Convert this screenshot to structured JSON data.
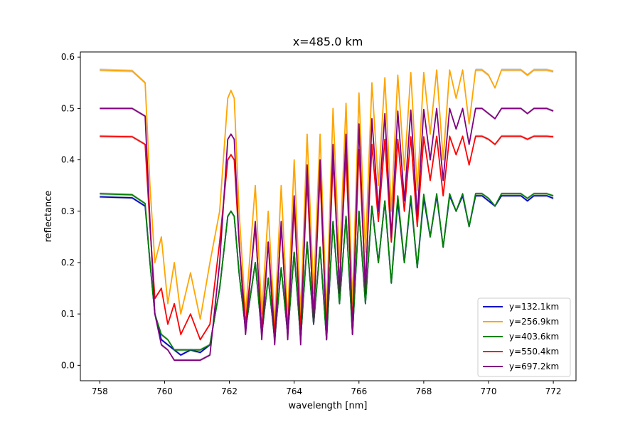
{
  "chart_data": {
    "type": "line",
    "title": "x=485.0 km",
    "xlabel": "wavelength [nm]",
    "ylabel": "reflectance",
    "xlim": [
      757.4,
      772.7
    ],
    "ylim": [
      -0.03,
      0.61
    ],
    "xticks": [
      758,
      760,
      762,
      764,
      766,
      768,
      770,
      772
    ],
    "yticks": [
      0.0,
      0.1,
      0.2,
      0.3,
      0.4,
      0.5,
      0.6
    ],
    "xtick_labels": [
      "758",
      "760",
      "762",
      "764",
      "766",
      "768",
      "770",
      "772"
    ],
    "ytick_labels": [
      "0.0",
      "0.1",
      "0.2",
      "0.3",
      "0.4",
      "0.5",
      "0.6"
    ],
    "grid": false,
    "legend_position": "lower right",
    "uncertainty_band_color": "#bbbbbb",
    "x": [
      758,
      759,
      759.4,
      759.55,
      759.7,
      759.9,
      760.1,
      760.3,
      760.5,
      760.8,
      761.1,
      761.4,
      761.7,
      761.95,
      762.05,
      762.15,
      762.3,
      762.5,
      762.8,
      763.0,
      763.2,
      763.4,
      763.6,
      763.8,
      764.0,
      764.2,
      764.4,
      764.6,
      764.8,
      765.0,
      765.2,
      765.4,
      765.6,
      765.8,
      766.0,
      766.2,
      766.4,
      766.6,
      766.8,
      767.0,
      767.2,
      767.4,
      767.6,
      767.8,
      768.0,
      768.2,
      768.4,
      768.6,
      768.8,
      769.0,
      769.2,
      769.4,
      769.6,
      769.8,
      770.0,
      770.2,
      770.4,
      770.6,
      770.8,
      771.0,
      771.2,
      771.4,
      771.6,
      771.8,
      772.0
    ],
    "series": [
      {
        "name": "y=132.1km",
        "color": "#0000cd",
        "values": [
          0.328,
          0.326,
          0.31,
          0.2,
          0.1,
          0.05,
          0.04,
          0.03,
          0.02,
          0.03,
          0.025,
          0.04,
          0.15,
          0.29,
          0.3,
          0.29,
          0.18,
          0.07,
          0.2,
          0.06,
          0.17,
          0.05,
          0.19,
          0.06,
          0.22,
          0.05,
          0.24,
          0.08,
          0.23,
          0.05,
          0.28,
          0.12,
          0.29,
          0.06,
          0.3,
          0.12,
          0.31,
          0.2,
          0.32,
          0.16,
          0.32,
          0.2,
          0.325,
          0.19,
          0.325,
          0.25,
          0.33,
          0.23,
          0.33,
          0.3,
          0.33,
          0.27,
          0.33,
          0.33,
          0.32,
          0.31,
          0.33,
          0.33,
          0.33,
          0.33,
          0.32,
          0.33,
          0.33,
          0.33,
          0.325
        ]
      },
      {
        "name": "y=256.9km",
        "color": "#ffa500",
        "values": [
          0.575,
          0.573,
          0.55,
          0.35,
          0.2,
          0.25,
          0.12,
          0.2,
          0.1,
          0.18,
          0.09,
          0.2,
          0.3,
          0.52,
          0.535,
          0.52,
          0.3,
          0.1,
          0.35,
          0.1,
          0.3,
          0.08,
          0.35,
          0.09,
          0.4,
          0.1,
          0.45,
          0.14,
          0.45,
          0.1,
          0.5,
          0.2,
          0.51,
          0.12,
          0.53,
          0.22,
          0.55,
          0.35,
          0.56,
          0.3,
          0.565,
          0.38,
          0.57,
          0.34,
          0.57,
          0.45,
          0.575,
          0.4,
          0.575,
          0.52,
          0.575,
          0.47,
          0.575,
          0.575,
          0.565,
          0.54,
          0.575,
          0.575,
          0.575,
          0.575,
          0.565,
          0.575,
          0.575,
          0.575,
          0.572
        ]
      },
      {
        "name": "y=403.6km",
        "color": "#008000",
        "values": [
          0.334,
          0.332,
          0.315,
          0.2,
          0.1,
          0.06,
          0.05,
          0.03,
          0.03,
          0.03,
          0.03,
          0.04,
          0.15,
          0.29,
          0.3,
          0.29,
          0.18,
          0.07,
          0.2,
          0.06,
          0.17,
          0.05,
          0.19,
          0.06,
          0.22,
          0.05,
          0.24,
          0.08,
          0.23,
          0.05,
          0.28,
          0.12,
          0.29,
          0.06,
          0.3,
          0.12,
          0.31,
          0.2,
          0.32,
          0.16,
          0.33,
          0.2,
          0.33,
          0.19,
          0.333,
          0.25,
          0.334,
          0.23,
          0.334,
          0.3,
          0.334,
          0.27,
          0.334,
          0.334,
          0.325,
          0.31,
          0.334,
          0.334,
          0.334,
          0.334,
          0.325,
          0.334,
          0.334,
          0.334,
          0.33
        ]
      },
      {
        "name": "y=550.4km",
        "color": "#ff0000",
        "values": [
          0.446,
          0.445,
          0.43,
          0.27,
          0.13,
          0.15,
          0.08,
          0.12,
          0.06,
          0.1,
          0.05,
          0.08,
          0.24,
          0.4,
          0.41,
          0.4,
          0.24,
          0.08,
          0.27,
          0.07,
          0.24,
          0.06,
          0.27,
          0.07,
          0.31,
          0.07,
          0.36,
          0.1,
          0.37,
          0.07,
          0.4,
          0.16,
          0.41,
          0.08,
          0.42,
          0.16,
          0.43,
          0.28,
          0.44,
          0.24,
          0.44,
          0.3,
          0.445,
          0.27,
          0.445,
          0.36,
          0.446,
          0.33,
          0.446,
          0.41,
          0.446,
          0.39,
          0.446,
          0.446,
          0.44,
          0.43,
          0.446,
          0.446,
          0.446,
          0.446,
          0.44,
          0.446,
          0.446,
          0.446,
          0.445
        ]
      },
      {
        "name": "y=697.2km",
        "color": "#800080",
        "values": [
          0.5,
          0.5,
          0.485,
          0.28,
          0.1,
          0.04,
          0.03,
          0.01,
          0.01,
          0.01,
          0.01,
          0.02,
          0.2,
          0.44,
          0.45,
          0.44,
          0.24,
          0.06,
          0.28,
          0.05,
          0.24,
          0.04,
          0.28,
          0.05,
          0.33,
          0.04,
          0.39,
          0.08,
          0.4,
          0.05,
          0.43,
          0.14,
          0.45,
          0.06,
          0.47,
          0.14,
          0.48,
          0.3,
          0.49,
          0.25,
          0.495,
          0.32,
          0.497,
          0.29,
          0.498,
          0.4,
          0.5,
          0.36,
          0.5,
          0.46,
          0.5,
          0.43,
          0.5,
          0.5,
          0.49,
          0.48,
          0.5,
          0.5,
          0.5,
          0.5,
          0.49,
          0.5,
          0.5,
          0.5,
          0.495
        ]
      }
    ]
  }
}
